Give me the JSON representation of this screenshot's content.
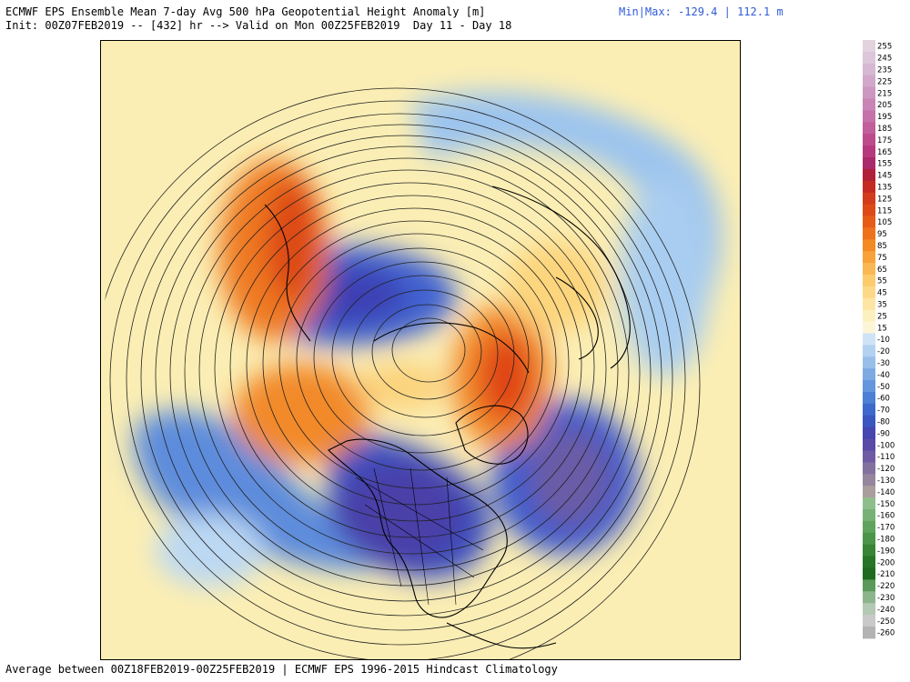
{
  "header": {
    "title": "ECMWF EPS Ensemble Mean 7-day Avg 500 hPa Geopotential Height Anomaly [m]",
    "minmax_prefix": "Min|Max:",
    "min": "-129.4",
    "max": "112.1",
    "unit": "m",
    "init_line": "Init: 00Z07FEB2019 -- [432] hr --> Valid on Mon 00Z25FEB2019  Day 11 - Day 18"
  },
  "footer": "Average between 00Z18FEB2019-00Z25FEB2019 | ECMWF EPS 1996-2015 Hindcast Climatology",
  "colorbar": {
    "labels": [
      "255",
      "245",
      "235",
      "225",
      "215",
      "205",
      "195",
      "185",
      "175",
      "165",
      "155",
      "145",
      "135",
      "125",
      "115",
      "105",
      "95",
      "85",
      "75",
      "65",
      "55",
      "45",
      "35",
      "25",
      "15",
      "-10",
      "-20",
      "-30",
      "-40",
      "-50",
      "-60",
      "-70",
      "-80",
      "-90",
      "-100",
      "-110",
      "-120",
      "-130",
      "-140",
      "-150",
      "-160",
      "-170",
      "-180",
      "-190",
      "-200",
      "-210",
      "-220",
      "-230",
      "-240",
      "-250",
      "-260"
    ],
    "colors": [
      "#e3d3de",
      "#ddc6d9",
      "#d6b8d3",
      "#d1a8ca",
      "#cc97c0",
      "#c985b5",
      "#c672a8",
      "#c25e9b",
      "#bc4b8c",
      "#b5397c",
      "#ab2a6b",
      "#b02038",
      "#c52a22",
      "#d23b1c",
      "#dd4a18",
      "#e65c17",
      "#ee721b",
      "#f48a24",
      "#f8a23a",
      "#fab854",
      "#fbcb6d",
      "#fcd987",
      "#fde6a3",
      "#fdf0bf",
      "#fdf6d6",
      "#cfe3f6",
      "#b3d1f0",
      "#98bfea",
      "#7daae3",
      "#6396dc",
      "#4c80d4",
      "#3c69cb",
      "#3a56bf",
      "#4546b0",
      "#5a4aa8",
      "#6e5ba3",
      "#82709f",
      "#96869d",
      "#a99e9d",
      "#8fbe8d",
      "#77b274",
      "#5fa45d",
      "#4a9548",
      "#378535",
      "#277526",
      "#1e6a1f",
      "#5a9a5a",
      "#8db58d",
      "#b3c9b3",
      "#c9c9c9",
      "#b3b3b3"
    ]
  }
}
